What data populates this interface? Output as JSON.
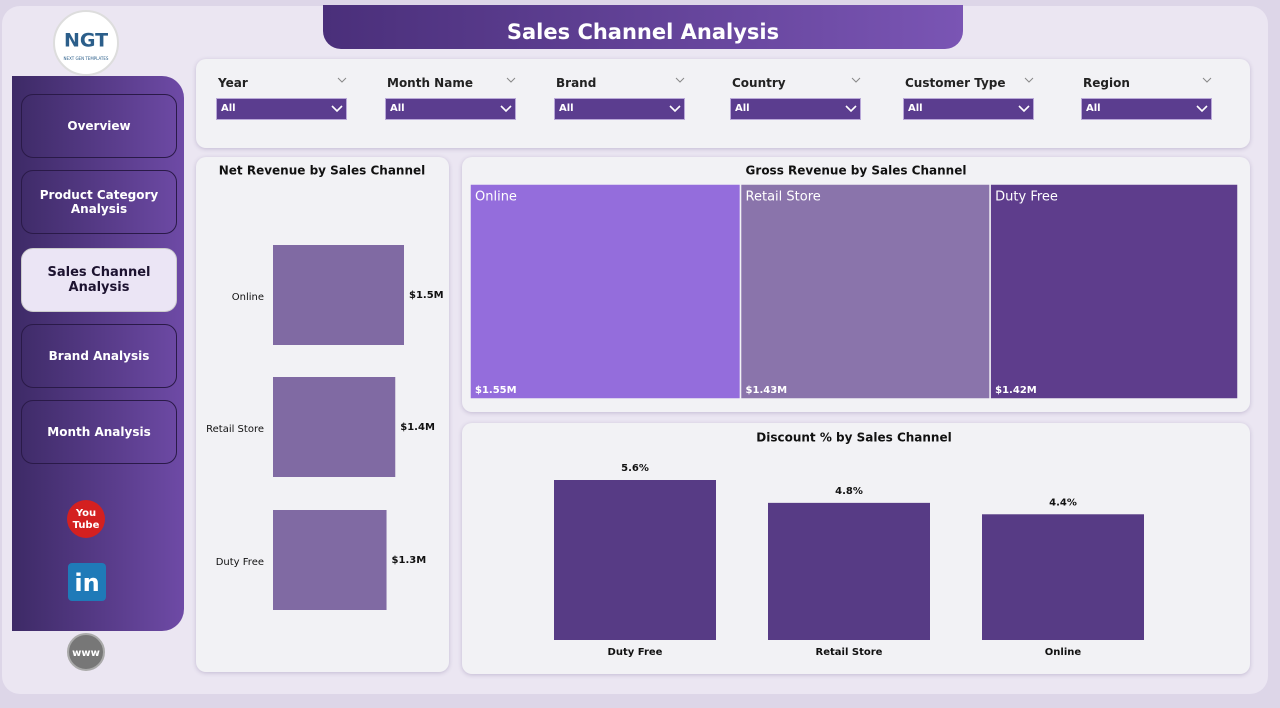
{
  "header": {
    "title": "Sales Channel Analysis"
  },
  "logo": {
    "text": "NGT",
    "subtitle": "NEXT GEN TEMPLATES"
  },
  "nav": {
    "items": [
      "Overview",
      "Product Category Analysis",
      "Sales Channel Analysis",
      "Brand Analysis",
      "Month Analysis"
    ],
    "active": 2
  },
  "social": {
    "youtube_top": "You",
    "youtube_bottom": "Tube",
    "linkedin": "in",
    "web": "www"
  },
  "filters": [
    {
      "label": "Year",
      "value": "All"
    },
    {
      "label": "Month Name",
      "value": "All"
    },
    {
      "label": "Brand",
      "value": "All"
    },
    {
      "label": "Country",
      "value": "All"
    },
    {
      "label": "Customer Type",
      "value": "All"
    },
    {
      "label": "Region",
      "value": "All"
    }
  ],
  "chart_data": [
    {
      "type": "bar",
      "orientation": "horizontal",
      "title": "Net Revenue by Sales Channel",
      "categories": [
        "Online",
        "Retail Store",
        "Duty Free"
      ],
      "values": [
        1.5,
        1.4,
        1.3
      ],
      "value_labels": [
        "$1.5M",
        "$1.4M",
        "$1.3M"
      ],
      "color": "#806aa3"
    },
    {
      "type": "treemap",
      "title": "Gross Revenue by Sales Channel",
      "categories": [
        "Online",
        "Retail Store",
        "Duty Free"
      ],
      "values": [
        1.55,
        1.43,
        1.42
      ],
      "value_labels": [
        "$1.55M",
        "$1.43M",
        "$1.42M"
      ],
      "colors": [
        "#946ddc",
        "#8a74ab",
        "#5e3d8c"
      ]
    },
    {
      "type": "bar",
      "orientation": "vertical",
      "title": "Discount % by Sales Channel",
      "categories": [
        "Duty Free",
        "Retail Store",
        "Online"
      ],
      "values": [
        5.6,
        4.8,
        4.4
      ],
      "value_labels": [
        "5.6%",
        "4.8%",
        "4.4%"
      ],
      "color": "#573b85"
    }
  ]
}
